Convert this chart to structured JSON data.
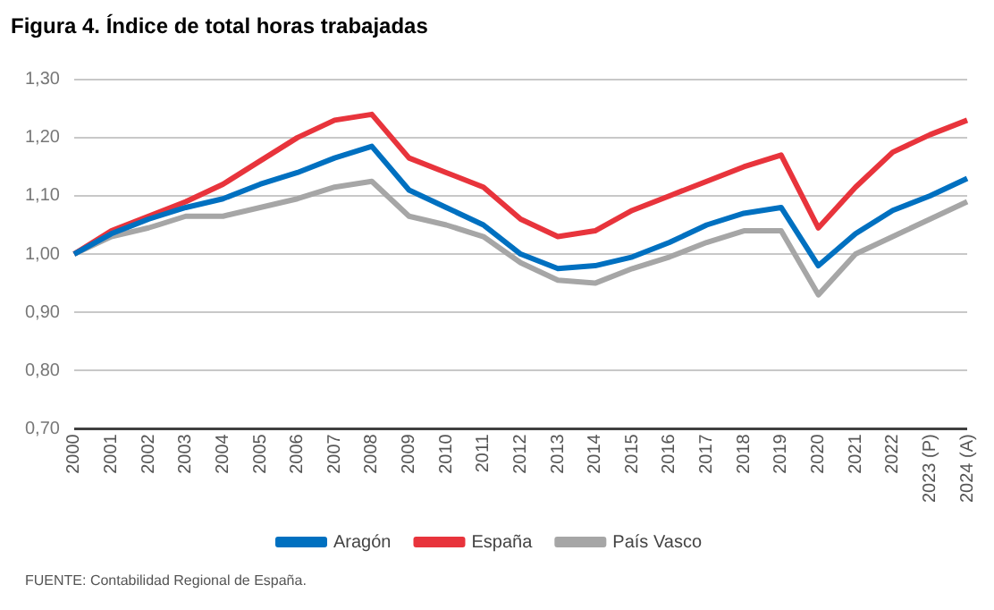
{
  "chart_data": {
    "type": "line",
    "title": "Figura 4. Índice de total horas trabajadas",
    "categories": [
      "2000",
      "2001",
      "2002",
      "2003",
      "2004",
      "2005",
      "2006",
      "2007",
      "2008",
      "2009",
      "2010",
      "2011",
      "2012",
      "2013",
      "2014",
      "2015",
      "2016",
      "2017",
      "2018",
      "2019",
      "2020",
      "2021",
      "2022",
      "2023 (P)",
      "2024 (A)"
    ],
    "series": [
      {
        "name": "Aragón",
        "color": "#0070c0",
        "values": [
          1.0,
          1.035,
          1.06,
          1.08,
          1.095,
          1.12,
          1.14,
          1.165,
          1.185,
          1.11,
          1.08,
          1.05,
          1.0,
          0.975,
          0.98,
          0.995,
          1.02,
          1.05,
          1.07,
          1.08,
          0.98,
          1.035,
          1.075,
          1.1,
          1.13
        ]
      },
      {
        "name": "España",
        "color": "#e8343c",
        "values": [
          1.0,
          1.04,
          1.065,
          1.09,
          1.12,
          1.16,
          1.2,
          1.23,
          1.24,
          1.165,
          1.14,
          1.115,
          1.06,
          1.03,
          1.04,
          1.075,
          1.1,
          1.125,
          1.15,
          1.17,
          1.045,
          1.115,
          1.175,
          1.205,
          1.23
        ]
      },
      {
        "name": "País Vasco",
        "color": "#a6a6a6",
        "values": [
          1.0,
          1.03,
          1.045,
          1.065,
          1.065,
          1.08,
          1.095,
          1.115,
          1.125,
          1.065,
          1.05,
          1.03,
          0.985,
          0.955,
          0.95,
          0.975,
          0.995,
          1.02,
          1.04,
          1.04,
          0.93,
          1.0,
          1.03,
          1.06,
          1.09
        ]
      }
    ],
    "ylim": [
      0.7,
      1.3
    ],
    "yticks": [
      {
        "value": 0.7,
        "label": "0,70"
      },
      {
        "value": 0.8,
        "label": "0,80"
      },
      {
        "value": 0.9,
        "label": "0,90"
      },
      {
        "value": 1.0,
        "label": "1,00"
      },
      {
        "value": 1.1,
        "label": "1,10"
      },
      {
        "value": 1.2,
        "label": "1,20"
      },
      {
        "value": 1.3,
        "label": "1,30"
      }
    ],
    "grid": "y",
    "legend": "bottom",
    "marker": "none",
    "line_style": "solid",
    "annotations": [
      "FUENTE: Contabilidad Regional de España."
    ]
  }
}
